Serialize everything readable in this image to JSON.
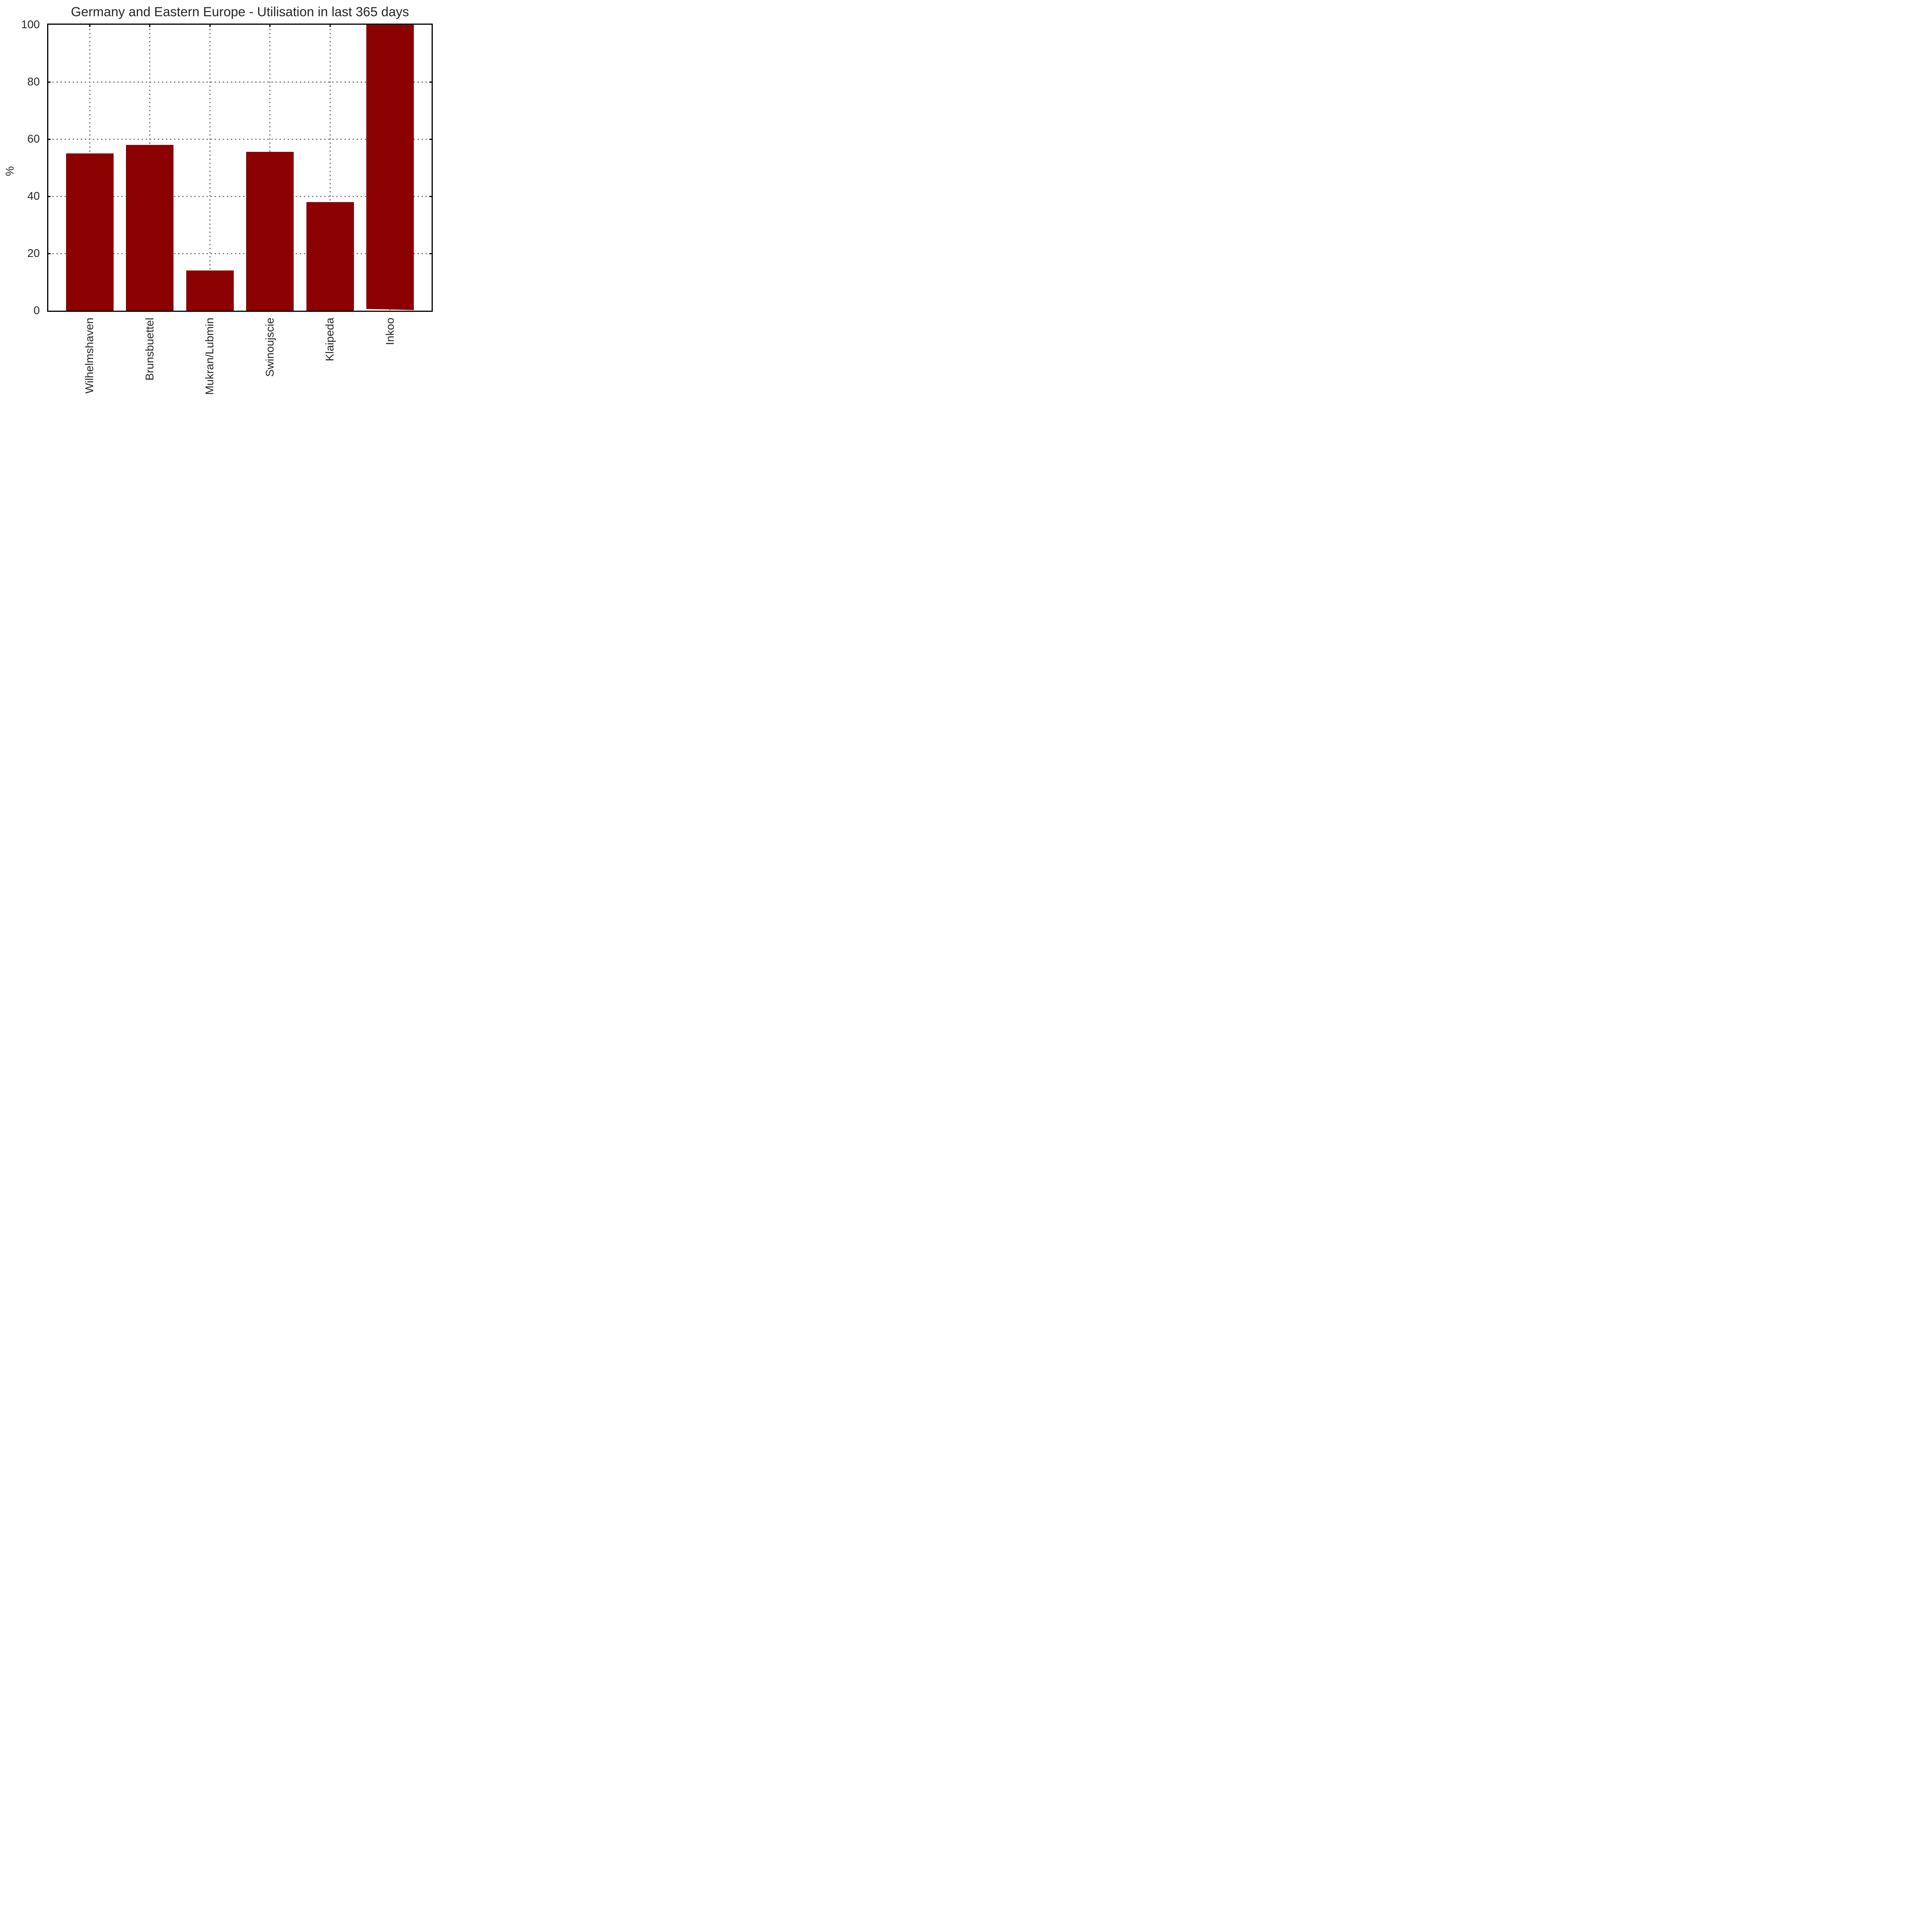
{
  "figure": {
    "title": "Germany and Eastern Europe - Utilisation in last 365 days",
    "ylabel": "%"
  },
  "chart_data": {
    "type": "bar",
    "title": "Germany and Eastern Europe - Utilisation in last 365 days",
    "categories": [
      "Wilhelmshaven",
      "Brunsbuettel",
      "Mukran/Lubmin",
      "Swinoujscie",
      "Klaipeda",
      "Inkoo"
    ],
    "values": [
      55,
      58,
      14,
      55.5,
      38,
      100
    ],
    "xlabel": "",
    "ylabel": "%",
    "ylim": [
      0,
      100
    ],
    "yticks": [
      0,
      20,
      40,
      60,
      80,
      100
    ],
    "grid": {
      "visible": true,
      "style": "dotted",
      "axes": "both"
    },
    "legend": null,
    "bar_color": "#8B0000",
    "axis_color": "#000000",
    "grid_color": "#7a7a7a",
    "text_color": "#262626",
    "note": "Inkoo bar reaches the top of the axis (clipped at 100); a thin white sliver is visible under its base"
  }
}
